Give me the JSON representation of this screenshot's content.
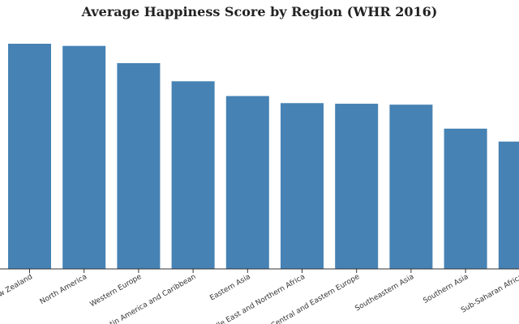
{
  "chart_data": {
    "type": "bar",
    "title": "Average Happiness Score by Region (WHR 2016)",
    "categories": [
      "Australia and New Zealand",
      "North America",
      "Western Europe",
      "Latin America and Caribbean",
      "Eastern Asia",
      "Middle East and Northern Africa",
      "Central and Eastern Europe",
      "Southeastern Asia",
      "Southern Asia",
      "Sub-Saharan Africa"
    ],
    "values": [
      7.32,
      7.25,
      6.69,
      6.1,
      5.62,
      5.39,
      5.37,
      5.34,
      4.56,
      4.14
    ],
    "ylim": [
      0,
      8.5
    ],
    "xlabel": "",
    "ylabel": "",
    "grid": false,
    "bar_color": "#4682b4"
  }
}
